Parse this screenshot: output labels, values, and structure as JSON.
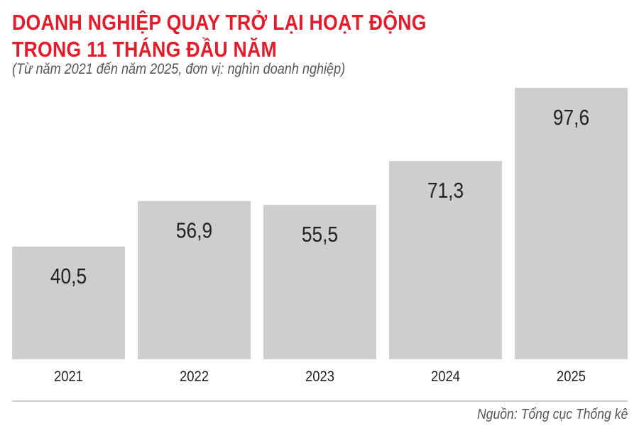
{
  "chart_data": {
    "type": "bar",
    "title_line1": "DOANH NGHIỆP QUAY TRỞ LẠI HOẠT ĐỘNG",
    "title_line2": "TRONG 11 THÁNG ĐẦU NĂM",
    "subtitle": "(Từ năm 2021 đến năm 2025, đơn vị: nghìn doanh nghiệp)",
    "categories": [
      "2021",
      "2022",
      "2023",
      "2024",
      "2025"
    ],
    "values": [
      40.5,
      56.9,
      55.5,
      71.3,
      97.6
    ],
    "value_labels": [
      "40,5",
      "56,9",
      "55,5",
      "71,3",
      "97,6"
    ],
    "ylim": [
      0,
      97.6
    ],
    "grid": false,
    "bar_color": "#cfcdce",
    "title_color": "#e31b2a",
    "source": "Nguồn: Tổng cục Thống kê"
  }
}
